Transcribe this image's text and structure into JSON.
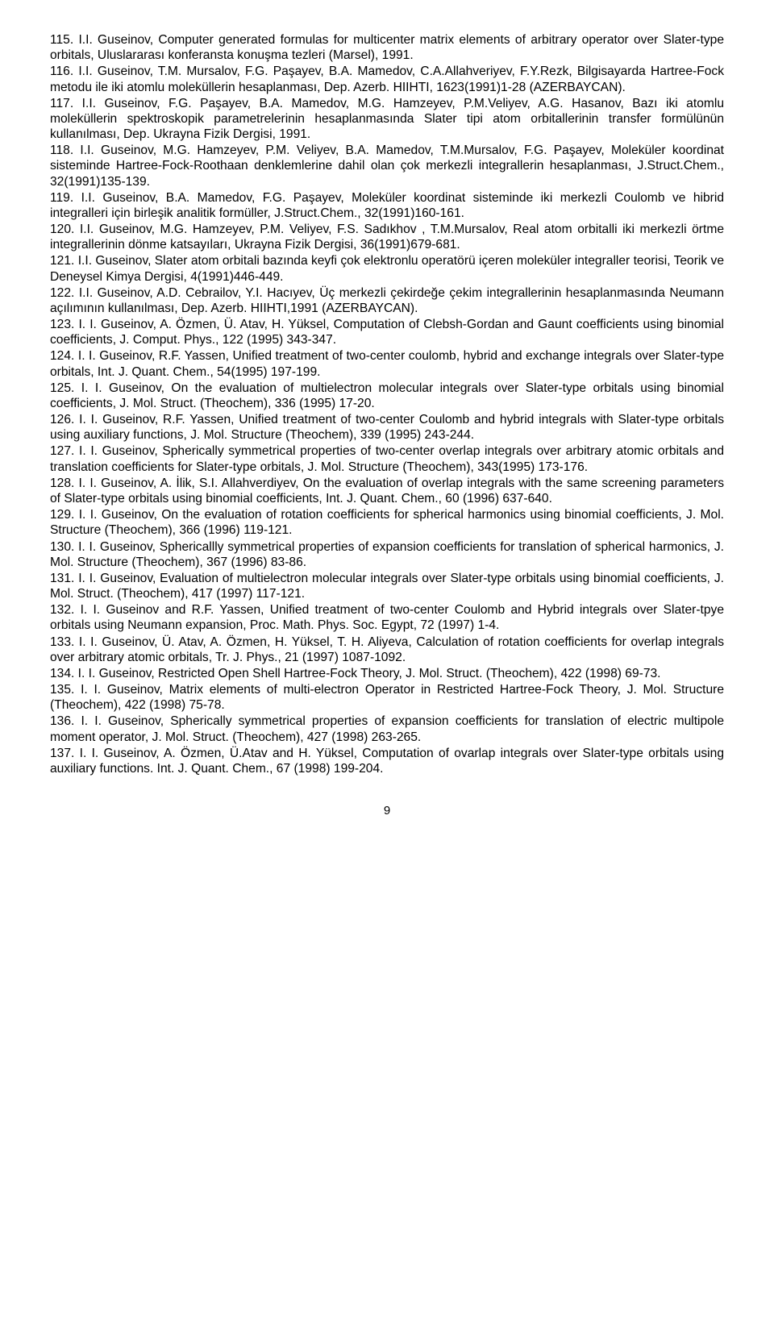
{
  "page": {
    "number": "9",
    "fontsize_body": 15.6,
    "fontsize_pagenum": 15,
    "text_color": "#000000",
    "background_color": "#ffffff",
    "line_height": 1.23
  },
  "references": [
    "115. I.I. Guseinov, Computer generated formulas for multicenter matrix elements of arbitrary operator over Slater-type orbitals, Uluslararası konferansta konuşma tezleri (Marsel), 1991.",
    "116. I.I. Guseinov, T.M. Mursalov, F.G. Paşayev, B.A. Mamedov, C.A.Allahveriyev, F.Y.Rezk, Bilgisayarda Hartree-Fock metodu ile iki atomlu moleküllerin hesaplanması,    Dep. Azerb. HIIHTI, 1623(1991)1-28 (AZERBAYCAN).",
    "117. I.I. Guseinov, F.G. Paşayev, B.A. Mamedov, M.G. Hamzeyev, P.M.Veliyev, A.G. Hasanov, Bazı iki atomlu moleküllerin spektroskopik parametrelerinin hesaplanmasında Slater tipi  atom orbitallerinin transfer formülünün kullanılması, Dep. Ukrayna Fizik Dergisi, 1991.",
    "118. I.I. Guseinov, M.G. Hamzeyev, P.M. Veliyev, B.A. Mamedov, T.M.Mursalov, F.G.  Paşayev, Moleküler koordinat sisteminde Hartree-Fock-Roothaan denklemlerine dahil olan çok  merkezli integrallerin hesaplanması, J.Struct.Chem., 32(1991)135-139.",
    "119. I.I. Guseinov, B.A. Mamedov, F.G. Paşayev, Moleküler koordinat sisteminde iki merkezli Coulomb ve hibrid integralleri için birleşik analitik formüller, J.Struct.Chem., 32(1991)160-161.",
    "120. I.I. Guseinov,  M.G.  Hamzeyev, P.M. Veliyev, F.S. Sadıkhov , T.M.Mursalov, Real atom orbitalli iki merkezli örtme integrallerinin dönme katsayıları, Ukrayna Fizik Dergisi, 36(1991)679-681.",
    "121. I.I. Guseinov, Slater atom orbitali bazında keyfi çok elektronlu operatörü içeren moleküler integraller teorisi, Teorik ve Deneysel Kimya Dergisi, 4(1991)446-449.",
    "122. I.I. Guseinov,  A.D. Cebrailov, Y.I. Hacıyev, Üç merkezli çekirdeğe çekim integrallerinin hesaplanmasında Neumann açılımının kullanılması, Dep. Azerb. HIIHTI,1991 (AZERBAYCAN).",
    "123.  I. I. Guseinov, A. Özmen, Ü. Atav, H. Yüksel, Computation of Clebsh-Gordan and Gaunt coefficients using binomial coefficients, J. Comput. Phys., 122 (1995) 343-347.",
    "124.  I. I. Guseinov, R.F. Yassen, Unified treatment of two-center coulomb, hybrid and exchange integrals over Slater-type orbitals, Int. J. Quant. Chem., 54(1995) 197-199.",
    "125.   I. I. Guseinov, On the evaluation of multielectron molecular integrals over Slater-type orbitals using  binomial coefficients,  J.  Mol.  Struct. (Theochem), 336 (1995) 17-20.",
    "126.  I. I. Guseinov, R.F. Yassen, Unified treatment of two-center Coulomb and hybrid integrals with Slater-type orbitals using auxiliary functions, J. Mol. Structure (Theochem), 339 (1995) 243-244.",
    "127.   I. I. Guseinov, Spherically symmetrical properties of two-center overlap integrals over arbitrary atomic  orbitals and translation coefficients for Slater-type orbitals, J.  Mol.  Structure (Theochem), 343(1995) 173-176.",
    "128.   I. I. Guseinov, A. İlik, S.I. Allahverdiyev, On the evaluation of overlap integrals with the same screening parameters of Slater-type orbitals using binomial coefficients, Int. J. Quant. Chem., 60 (1996) 637-640.",
    "129.   I. I. Guseinov, On the evaluation of rotation coefficients for spherical harmonics using binomial  coefficients, J. Mol.  Structure (Theochem), 366 (1996) 119-121.",
    "130.  I. I. Guseinov, Sphericallly symmetrical properties of expansion coefficients for translation of spherical harmonics, J. Mol.  Structure (Theochem), 367 (1996) 83-86.",
    "131. I. I. Guseinov, Evaluation of multielectron molecular integrals over Slater-type orbitals using binomial coefficients, J. Mol.  Struct. (Theochem), 417 (1997) 117-121.",
    "132.   I. I. Guseinov and R.F. Yassen, Unified treatment of two-center  Coulomb and Hybrid integrals over Slater-tpye orbitals using Neumann expansion, Proc.  Math.  Phys.  Soc. Egypt, 72 (1997) 1-4.",
    "133.   I. I. Guseinov, Ü. Atav, A. Özmen, H. Yüksel, T. H. Aliyeva, Calculation of rotation coefficients for overlap integrals over arbitrary atomic orbitals, Tr. J. Phys., 21 (1997) 1087-1092.",
    "134.  I. I. Guseinov, Restricted Open Shell Hartree-Fock Theory, J. Mol. Struct. (Theochem), 422 (1998) 69-73.",
    "135.   I. I. Guseinov, Matrix elements of multi-electron Operator in Restricted Hartree-Fock Theory, J. Mol.  Structure (Theochem), 422 (1998) 75-78.",
    "136.   I. I. Guseinov, Spherically symmetrical properties of expansion coefficients for translation of electric multipole moment operator, J. Mol.  Struct. (Theochem), 427 (1998) 263-265.",
    "137.  I. I. Guseinov, A. Özmen, Ü.Atav and H. Yüksel, Computation of ovarlap integrals over Slater-type orbitals using auxiliary functions. Int. J. Quant. Chem., 67 (1998) 199-204."
  ]
}
